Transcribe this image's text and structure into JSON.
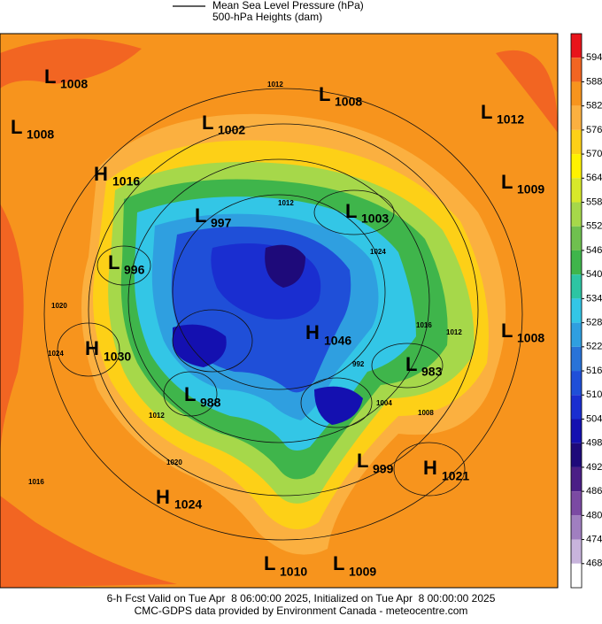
{
  "header": {
    "legend_line_1": "Mean Sea Level Pressure (hPa)",
    "legend_line_2": "500-hPa Heights (dam)"
  },
  "colorbar": {
    "levels": [
      594,
      588,
      582,
      576,
      570,
      564,
      558,
      552,
      546,
      540,
      534,
      528,
      522,
      516,
      510,
      504,
      498,
      492,
      486,
      480,
      474,
      468
    ],
    "colors": [
      "#e8141b",
      "#f26522",
      "#f7941d",
      "#fbb040",
      "#fdd017",
      "#fff200",
      "#d7e82a",
      "#a6d84a",
      "#6fc04f",
      "#3fb54b",
      "#2dc5a3",
      "#33c6e6",
      "#2f9fe0",
      "#2873d8",
      "#1f4fd8",
      "#1a2ed0",
      "#1410b0",
      "#1e0a7a",
      "#4b1f86",
      "#7b4aa3",
      "#a07fc0",
      "#c8b4dc",
      "#ffffff"
    ]
  },
  "centers": [
    {
      "letter": "L",
      "value": 1008
    },
    {
      "letter": "L",
      "value": 1008
    },
    {
      "letter": "L",
      "value": 1002
    },
    {
      "letter": "L",
      "value": 1008
    },
    {
      "letter": "L",
      "value": 1012
    },
    {
      "letter": "H",
      "value": 1016
    },
    {
      "letter": "L",
      "value": 997
    },
    {
      "letter": "L",
      "value": 1003
    },
    {
      "letter": "L",
      "value": 1009
    },
    {
      "letter": "L",
      "value": 996
    },
    {
      "letter": "H",
      "value": 1030
    },
    {
      "letter": "H",
      "value": 1046
    },
    {
      "letter": "L",
      "value": 1008
    },
    {
      "letter": "L",
      "value": 983
    },
    {
      "letter": "L",
      "value": 988
    },
    {
      "letter": "L",
      "value": 999
    },
    {
      "letter": "H",
      "value": 1021
    },
    {
      "letter": "H",
      "value": 1024
    },
    {
      "letter": "L",
      "value": 1010
    },
    {
      "letter": "L",
      "value": 1009
    }
  ],
  "contour_labels": [
    1012,
    1012,
    1024,
    1020,
    1016,
    1012,
    992,
    1004,
    1008,
    1012,
    1020,
    1016,
    1024
  ],
  "footer": {
    "line_1": "6-h Fcst Valid on Tue Apr  8 06:00:00 2025, Initialized on Tue Apr  8 00:00:00 2025",
    "line_2": "CMC-GDPS data provided by Environment Canada - meteocentre.com"
  }
}
